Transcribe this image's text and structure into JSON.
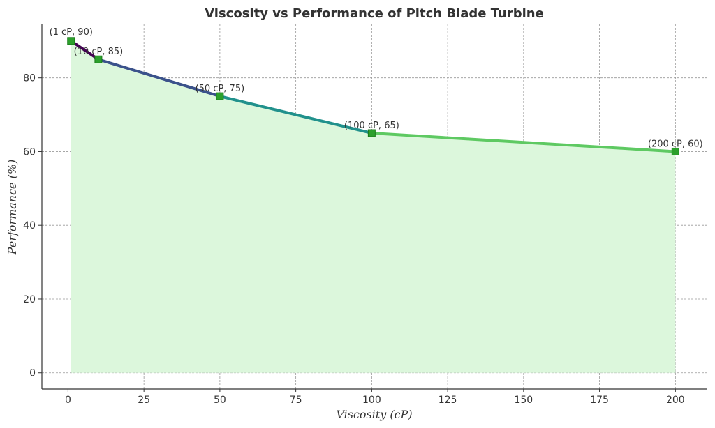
{
  "chart_data": {
    "type": "line",
    "title": "Viscosity vs Performance of Pitch Blade Turbine",
    "xlabel": "Viscosity (cP)",
    "ylabel": "Performance (%)",
    "x": [
      1,
      10,
      50,
      100,
      200
    ],
    "values": [
      90,
      85,
      75,
      65,
      60
    ],
    "annotations": [
      "(1 cP, 90)",
      "(10 cP, 85)",
      "(50 cP, 75)",
      "(100 cP, 65)",
      "(200 cP, 60)"
    ],
    "xticks": [
      0,
      25,
      50,
      75,
      100,
      125,
      150,
      175,
      200
    ],
    "yticks": [
      0,
      20,
      40,
      60,
      80
    ],
    "xlim": [
      -8.6,
      210.5
    ],
    "ylim": [
      -4.4,
      94.5
    ],
    "grid": true,
    "fill_under": true,
    "colors": {
      "segments": [
        "#440154",
        "#3b528b",
        "#21918c",
        "#5ec962"
      ],
      "marker": "#2ca02c",
      "marker_edge": "#1a7a1a",
      "fill": "#dcf7dc",
      "grid": "#999999"
    }
  }
}
